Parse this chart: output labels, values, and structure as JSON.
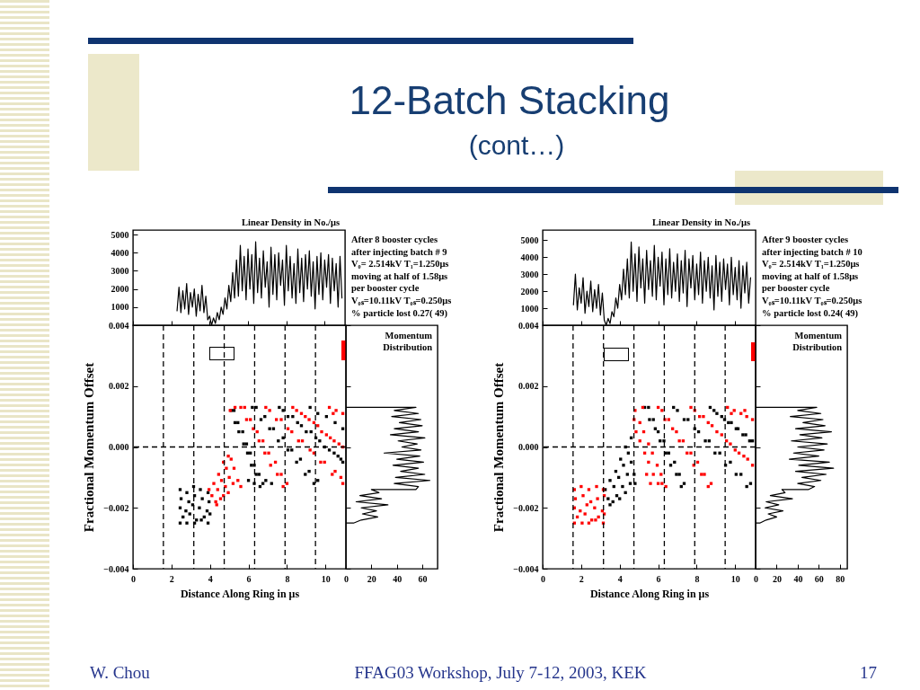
{
  "chart_data": [
    {
      "type": "other",
      "title": "12-Batch Stacking",
      "subtitle": "(cont…)",
      "annotations": [
        "W. Chou",
        "FFAG03 Workshop, July 7-12, 2003, KEK",
        "17"
      ]
    },
    {
      "type": "line",
      "title": "Linear Density in No./μs",
      "annotations": [
        "After 8 booster cycles",
        "after injecting batch # 9",
        "V₀= 2.514kV T₁=1.250μs",
        "moving at half of 1.58μs",
        "per booster cycle",
        "V₀ₛ=10.11kV T₀ₛ=0.250μs",
        "% particle lost 0.27( 49)"
      ],
      "color": "#000000",
      "x": [
        2.3,
        2.4,
        2.5,
        2.6,
        2.7,
        2.8,
        2.9,
        3.0,
        3.1,
        3.2,
        3.3,
        3.4,
        3.5,
        3.6,
        3.7,
        3.8,
        3.9,
        4.0,
        4.1,
        4.2,
        4.3,
        4.4,
        4.5,
        4.6,
        4.7,
        4.8,
        4.9,
        5.0,
        5.1,
        5.2,
        5.3,
        5.4,
        5.5,
        5.6,
        5.7,
        5.8,
        5.9,
        6.0,
        6.1,
        6.2,
        6.3,
        6.4,
        6.5,
        6.6,
        6.7,
        6.8,
        6.9,
        7.0,
        7.1,
        7.2,
        7.3,
        7.4,
        7.5,
        7.6,
        7.7,
        7.8,
        7.9,
        8.0,
        8.1,
        8.2,
        8.3,
        8.4,
        8.5,
        8.6,
        8.7,
        8.8,
        8.9,
        9.0,
        9.1,
        9.2,
        9.3,
        9.4,
        9.5,
        9.6,
        9.7,
        9.8,
        9.9,
        10.0,
        10.1,
        10.2,
        10.3,
        10.4,
        10.5,
        10.6,
        10.7,
        10.8,
        10.9
      ],
      "values": [
        800,
        2100,
        700,
        1900,
        900,
        2300,
        600,
        1800,
        1000,
        2000,
        500,
        1700,
        800,
        2200,
        700,
        1600,
        300,
        500,
        0,
        400,
        100,
        700,
        300,
        1000,
        600,
        1500,
        900,
        2200,
        1300,
        2900,
        1500,
        3600,
        1600,
        4400,
        1900,
        3800,
        1400,
        4200,
        2000,
        3900,
        1200,
        4600,
        1800,
        3700,
        1500,
        4100,
        2100,
        3500,
        1000,
        4300,
        1700,
        3900,
        1400,
        4000,
        2200,
        3600,
        1100,
        4400,
        1900,
        3800,
        1500,
        3400,
        1200,
        4200,
        1800,
        3700,
        1300,
        3900,
        2000,
        4100,
        1600,
        3500,
        900,
        3800,
        1700,
        4000,
        1400,
        3600,
        2100,
        3900,
        1200,
        3700,
        1900,
        3400,
        1000,
        3800,
        1500
      ],
      "xlim": [
        0,
        11.06
      ],
      "xticks": [
        0,
        2,
        4,
        6,
        8,
        10
      ],
      "ylim": [
        0,
        5250
      ],
      "yticks": [
        1000,
        2000,
        3000,
        4000,
        5000
      ],
      "tick_labels": "y"
    },
    {
      "type": "scatter",
      "xlabel": "Distance Along Ring in μs",
      "ylabel": "Fractional Momentum Offset",
      "marker": "square",
      "series": [
        {
          "color": "#000000",
          "x": [
            2.45,
            2.8,
            3.15,
            3.5,
            3.9,
            2.5,
            2.9,
            3.2,
            3.6,
            3.95,
            2.45,
            2.75,
            3.1,
            3.45,
            3.85,
            2.6,
            2.95,
            3.3,
            3.7,
            4.0,
            2.45,
            2.8,
            3.2,
            3.55,
            3.9,
            5.1,
            5.3,
            5.5,
            5.75,
            5.95,
            6.15,
            6.4,
            6.6,
            5.25,
            5.45,
            5.7,
            5.9,
            6.1,
            6.3,
            6.55,
            6.75,
            6.2,
            6.65,
            7.1,
            7.55,
            8.05,
            8.5,
            8.95,
            9.4,
            6.4,
            6.85,
            7.3,
            7.8,
            8.25,
            8.7,
            9.15,
            9.6,
            7.6,
            8.05,
            8.55,
            9.0,
            9.5,
            9.95,
            10.45,
            10.9,
            7.8,
            8.3,
            8.75,
            9.25,
            9.7,
            10.2,
            10.65,
            10.8,
            9.2,
            9.6,
            10.05,
            10.5,
            10.9,
            6.0,
            6.3,
            6.9,
            7.2
          ],
          "values": [
            -0.0014,
            -0.0015,
            -0.0013,
            -0.0014,
            -0.0015,
            -0.0017,
            -0.0018,
            -0.0016,
            -0.0017,
            -0.0018,
            -0.002,
            -0.0021,
            -0.0019,
            -0.002,
            -0.0021,
            -0.0023,
            -0.0022,
            -0.0024,
            -0.0023,
            -0.0022,
            -0.0025,
            -0.0025,
            -0.0025,
            -0.0024,
            -0.0025,
            0.0012,
            0.0008,
            0.0005,
            0.0001,
            -0.0002,
            -0.0006,
            -0.0009,
            -0.0013,
            0.0012,
            0.0008,
            0.0005,
            0.0001,
            -0.0002,
            -0.0006,
            -0.0009,
            -0.0012,
            0.0013,
            0.0009,
            0.0006,
            0.0002,
            -0.0001,
            -0.0005,
            -0.0009,
            -0.0012,
            0.0013,
            0.001,
            0.0006,
            0.0003,
            -0.0001,
            -0.0004,
            -0.0008,
            -0.0011,
            0.0013,
            0.001,
            0.0008,
            0.0005,
            0.0003,
            0,
            -0.0002,
            -0.0005,
            0.0012,
            0.001,
            0.0007,
            0.0005,
            0.0002,
            -0.0001,
            -0.0003,
            -0.0004,
            0.0013,
            0.0011,
            0.001,
            0.0008,
            0.0006,
            -0.0011,
            -0.0012,
            -0.0011,
            -0.0012
          ]
        },
        {
          "color": "#ff0000",
          "x": [
            3.95,
            4.1,
            4.3,
            4.35,
            4.2,
            4.4,
            4.55,
            4.7,
            4.45,
            4.6,
            4.8,
            4.95,
            4.7,
            4.85,
            5.0,
            5.2,
            4.95,
            5.1,
            5.25,
            5.45,
            5.6,
            5.6,
            5.9,
            6.25,
            6.55,
            6.85,
            7.15,
            7.5,
            7.8,
            5.8,
            6.1,
            6.45,
            6.75,
            7.05,
            7.4,
            7.7,
            8.0,
            6.9,
            7.45,
            8.05,
            8.6,
            9.2,
            9.75,
            10.35,
            10.9,
            7.1,
            7.7,
            8.25,
            8.8,
            9.4,
            9.95,
            10.5,
            10.8,
            8.3,
            8.75,
            9.15,
            9.6,
            10.05,
            10.45,
            10.9,
            8.5,
            8.95,
            9.4,
            9.8,
            10.25,
            10.7,
            10.2,
            10.55,
            10.9,
            10.4,
            5.05,
            5.3
          ],
          "values": [
            -0.0014,
            -0.0016,
            -0.0018,
            -0.0019,
            -0.0012,
            -0.0014,
            -0.0017,
            -0.0016,
            -0.0009,
            -0.0011,
            -0.0013,
            -0.0015,
            -0.0005,
            -0.0007,
            -0.001,
            -0.0012,
            -0.0003,
            -0.0004,
            -0.0007,
            -0.0011,
            -0.0013,
            0.0013,
            0.0009,
            0.0006,
            0.0002,
            -0.0002,
            -0.0006,
            -0.0009,
            -0.0013,
            0.0013,
            0.0009,
            0.0005,
            0.0002,
            -0.0002,
            -0.0005,
            -0.0009,
            -0.0012,
            0.0013,
            0.0009,
            0.0006,
            0.0002,
            -0.0001,
            -0.0005,
            -0.0009,
            -0.0012,
            0.0012,
            0.0009,
            0.0005,
            0.0002,
            -0.0002,
            -0.0005,
            -0.0008,
            -0.001,
            0.0013,
            0.0011,
            0.0009,
            0.0007,
            0.0004,
            0.0002,
            0,
            0.0012,
            0.001,
            0.0008,
            0.0005,
            0.0003,
            0.0001,
            0.0013,
            0.0012,
            0.0011,
            0.0011,
            0.0012,
            0.0013
          ]
        }
      ],
      "xlim": [
        0,
        11.06
      ],
      "xticks": [
        0,
        2,
        4,
        6,
        8,
        10
      ],
      "ylim": [
        -0.004,
        0.004
      ],
      "yticks": [
        {
          "value": -0.004,
          "label": "−0.004"
        },
        {
          "value": -0.002,
          "label": "−0.002"
        },
        {
          "value": 0,
          "label": "0.000"
        },
        {
          "value": 0.002,
          "label": "0.002"
        },
        {
          "value": 0.004,
          "label": "0.004"
        }
      ],
      "ref_lines": [
        {
          "axis": "x",
          "value": 1.58,
          "line_style": "dashed"
        },
        {
          "axis": "x",
          "value": 3.16,
          "line_style": "dashed"
        },
        {
          "axis": "x",
          "value": 4.74,
          "line_style": "dashed"
        },
        {
          "axis": "x",
          "value": 6.32,
          "line_style": "dashed"
        },
        {
          "axis": "x",
          "value": 7.9,
          "line_style": "dashed"
        },
        {
          "axis": "x",
          "value": 9.48,
          "line_style": "dashed"
        },
        {
          "axis": "y",
          "value": 0,
          "line_style": "dashed"
        }
      ]
    },
    {
      "type": "line",
      "title": "Momentum Distribution",
      "color": "#000000",
      "x": [
        0,
        55,
        38,
        57,
        36,
        59,
        42,
        60,
        38,
        57,
        35,
        62,
        41,
        56,
        44,
        59,
        30,
        58,
        40,
        61,
        37,
        57,
        43,
        62,
        39,
        66,
        38,
        57,
        55,
        20,
        26,
        11,
        28,
        8,
        33,
        12,
        24,
        13,
        25,
        12,
        6,
        0
      ],
      "values": [
        0.0013,
        0.0013,
        0.0012,
        0.0011,
        0.001,
        0.0009,
        0.0008,
        0.0007,
        0.0006,
        0.0005,
        0.0004,
        0.0003,
        0.0002,
        0.0001,
        0,
        -0.0001,
        -0.0002,
        -0.0003,
        -0.0004,
        -0.0005,
        -0.0006,
        -0.0007,
        -0.0008,
        -0.0009,
        -0.001,
        -0.0011,
        -0.0012,
        -0.0013,
        -0.0014,
        -0.0014,
        -0.0015,
        -0.0016,
        -0.0017,
        -0.0018,
        -0.0019,
        -0.002,
        -0.0021,
        -0.0022,
        -0.0023,
        -0.0024,
        -0.0025,
        -0.0025
      ],
      "xlim": [
        0,
        72
      ],
      "xticks": [
        0,
        20,
        40,
        60
      ],
      "ylim": [
        -0.004,
        0.004
      ],
      "yticks": [
        -0.004,
        -0.002,
        0,
        0.002,
        0.004
      ],
      "tick_labels": "x"
    },
    {
      "type": "line",
      "title": "Linear Density in No./μs",
      "annotations": [
        "After 9 booster cycles",
        "after injecting batch # 10",
        "V₀= 2.514kV T₁=1.250μs",
        "moving at half of 1.58μs",
        "per booster cycle",
        "V₀ₛ=10.11kV T₀ₛ=0.250μs",
        "% particle lost 0.24( 49)"
      ],
      "color": "#000000",
      "x": [
        1.6,
        1.7,
        1.8,
        1.9,
        2.0,
        2.1,
        2.2,
        2.3,
        2.4,
        2.5,
        2.6,
        2.7,
        2.8,
        2.9,
        3.0,
        3.1,
        3.2,
        3.3,
        3.4,
        3.5,
        3.6,
        3.7,
        3.8,
        3.9,
        4.0,
        4.1,
        4.2,
        4.3,
        4.4,
        4.5,
        4.6,
        4.7,
        4.8,
        4.9,
        5.0,
        5.1,
        5.2,
        5.3,
        5.4,
        5.5,
        5.6,
        5.7,
        5.8,
        5.9,
        6.0,
        6.1,
        6.2,
        6.3,
        6.4,
        6.5,
        6.6,
        6.7,
        6.8,
        6.9,
        7.0,
        7.1,
        7.2,
        7.3,
        7.4,
        7.5,
        7.6,
        7.7,
        7.8,
        7.9,
        8.0,
        8.1,
        8.2,
        8.3,
        8.4,
        8.5,
        8.6,
        8.7,
        8.8,
        8.9,
        9.0,
        9.1,
        9.2,
        9.3,
        9.4,
        9.5,
        9.6,
        9.7,
        9.8,
        9.9,
        10.0,
        10.1,
        10.2,
        10.3,
        10.4,
        10.5,
        10.6,
        10.7,
        10.8
      ],
      "values": [
        1200,
        3000,
        900,
        2200,
        1300,
        2800,
        700,
        2000,
        1100,
        2600,
        800,
        2100,
        1000,
        2400,
        600,
        1900,
        300,
        0,
        400,
        100,
        800,
        500,
        1600,
        1000,
        2400,
        1500,
        3300,
        1800,
        3900,
        1600,
        4900,
        2000,
        4200,
        1400,
        4600,
        2200,
        3900,
        1300,
        4400,
        2100,
        3800,
        1700,
        4700,
        1500,
        4000,
        2300,
        4300,
        1200,
        3900,
        1800,
        4500,
        1600,
        3700,
        2000,
        4200,
        1400,
        3800,
        1900,
        4400,
        1100,
        3900,
        2200,
        4100,
        1500,
        3600,
        1800,
        4300,
        1300,
        3800,
        2000,
        4000,
        1600,
        3500,
        900,
        4100,
        1700,
        3700,
        1400,
        3900,
        2100,
        3600,
        1200,
        4000,
        1800,
        3400,
        1500,
        3800,
        1000,
        3500,
        1900,
        3700,
        1300,
        2800
      ],
      "xlim": [
        0,
        11.06
      ],
      "xticks": [
        0,
        2,
        4,
        6,
        8,
        10
      ],
      "ylim": [
        0,
        5600
      ],
      "yticks": [
        1000,
        2000,
        3000,
        4000,
        5000
      ],
      "tick_labels": "y"
    },
    {
      "type": "scatter",
      "xlabel": "Distance Along Ring in μs",
      "ylabel": "Fractional Momentum Offset",
      "marker": "square",
      "series": [
        {
          "color": "#000000",
          "x": [
            3.25,
            3.4,
            3.5,
            3.65,
            3.5,
            3.7,
            3.85,
            4.0,
            3.8,
            3.95,
            4.15,
            4.3,
            4.05,
            4.2,
            4.4,
            4.55,
            4.3,
            4.45,
            4.6,
            4.75,
            4.8,
            4.6,
            5.3,
            5.55,
            5.85,
            6.1,
            6.4,
            6.65,
            6.95,
            7.2,
            5.5,
            5.75,
            6.0,
            6.3,
            6.55,
            6.85,
            7.1,
            7.35,
            6.8,
            7.35,
            7.9,
            8.45,
            8.95,
            9.5,
            10.05,
            10.6,
            7.0,
            7.55,
            8.1,
            8.65,
            9.2,
            9.75,
            10.3,
            10.8,
            8.7,
            9.05,
            9.45,
            9.8,
            10.15,
            10.55,
            10.9,
            8.9,
            9.3,
            9.65,
            10.05,
            10.4,
            10.75
          ],
          "values": [
            -0.0014,
            -0.0017,
            -0.0019,
            -0.0018,
            -0.0011,
            -0.0013,
            -0.0016,
            -0.0017,
            -0.0008,
            -0.001,
            -0.0013,
            -0.0015,
            -0.0004,
            -0.0006,
            -0.0009,
            -0.0012,
            0,
            -0.0002,
            -0.0005,
            -0.0009,
            -0.0012,
            0.0003,
            0.0013,
            0.0009,
            0.0006,
            0.0002,
            -0.0002,
            -0.0006,
            -0.0009,
            -0.0013,
            0.0013,
            0.0009,
            0.0005,
            0.0002,
            -0.0002,
            -0.0005,
            -0.0009,
            -0.0012,
            0.0013,
            0.0009,
            0.0006,
            0.0002,
            -0.0002,
            -0.0006,
            -0.0009,
            -0.0013,
            0.0012,
            0.0009,
            0.0005,
            0.0002,
            -0.0002,
            -0.0005,
            -0.0009,
            -0.0012,
            0.0013,
            0.0011,
            0.0009,
            0.0008,
            0.0006,
            0.0004,
            0.0002,
            0.0012,
            0.001,
            0.0008,
            0.0006,
            0.0004,
            0.0002
          ]
        },
        {
          "color": "#ff0000",
          "x": [
            1.65,
            2.0,
            2.4,
            2.8,
            3.15,
            1.7,
            2.1,
            2.5,
            2.85,
            3.2,
            1.65,
            1.95,
            2.3,
            2.7,
            3.1,
            1.8,
            2.2,
            2.55,
            2.9,
            3.2,
            1.65,
            2.05,
            2.4,
            2.75,
            3.15,
            4.8,
            5.05,
            5.25,
            5.5,
            5.7,
            5.95,
            6.15,
            6.4,
            4.75,
            4.85,
            5.05,
            5.3,
            5.5,
            5.75,
            6.0,
            5.2,
            6.0,
            6.35,
            6.75,
            7.1,
            7.5,
            7.85,
            8.25,
            8.6,
            6.2,
            6.55,
            6.95,
            7.3,
            7.7,
            8.05,
            8.4,
            8.75,
            7.7,
            8.15,
            8.6,
            9.05,
            9.55,
            10.0,
            10.45,
            10.9,
            7.9,
            8.35,
            8.8,
            9.3,
            9.75,
            10.2,
            10.65,
            9.6,
            9.95,
            10.3,
            10.6,
            10.9,
            9.8,
            10.5,
            5.4,
            5.6,
            6.2
          ],
          "values": [
            -0.0014,
            -0.0013,
            -0.0014,
            -0.0013,
            -0.0014,
            -0.0017,
            -0.0016,
            -0.0018,
            -0.0017,
            -0.0016,
            -0.002,
            -0.0021,
            -0.0019,
            -0.002,
            -0.0021,
            -0.0023,
            -0.0022,
            -0.0024,
            -0.0023,
            -0.0022,
            -0.0025,
            -0.0025,
            -0.0025,
            -0.0024,
            -0.0025,
            0.0012,
            0.0008,
            0.0005,
            0.0001,
            -0.0002,
            -0.0006,
            -0.0009,
            -0.0013,
            0.0009,
            0.0005,
            0.0002,
            -0.0002,
            -0.0005,
            -0.0009,
            -0.0012,
            0.0013,
            0.0013,
            0.0009,
            0.0006,
            0.0002,
            -0.0002,
            -0.0006,
            -0.0009,
            -0.0013,
            0.0012,
            0.0009,
            0.0005,
            0.0002,
            -0.0002,
            -0.0005,
            -0.0009,
            -0.0012,
            0.0013,
            0.001,
            0.0008,
            0.0005,
            0.0002,
            -0.0001,
            -0.0003,
            -0.0006,
            0.0012,
            0.001,
            0.0007,
            0.0004,
            0.0001,
            -0.0002,
            -0.0004,
            0.0013,
            0.0012,
            0.0011,
            0.001,
            0.0009,
            0.0011,
            0.0012,
            -0.0009,
            -0.0012,
            -0.0012
          ]
        }
      ],
      "xlim": [
        0,
        11.06
      ],
      "xticks": [
        0,
        2,
        4,
        6,
        8,
        10
      ],
      "ylim": [
        -0.004,
        0.004
      ],
      "yticks": [
        {
          "value": -0.004,
          "label": "−0.004"
        },
        {
          "value": -0.002,
          "label": "−0.002"
        },
        {
          "value": 0,
          "label": "0.000"
        },
        {
          "value": 0.002,
          "label": "0.002"
        },
        {
          "value": 0.004,
          "label": "0.004"
        }
      ],
      "ref_lines": [
        {
          "axis": "x",
          "value": 1.58,
          "line_style": "dashed"
        },
        {
          "axis": "x",
          "value": 3.16,
          "line_style": "dashed"
        },
        {
          "axis": "x",
          "value": 4.74,
          "line_style": "dashed"
        },
        {
          "axis": "x",
          "value": 6.32,
          "line_style": "dashed"
        },
        {
          "axis": "x",
          "value": 7.9,
          "line_style": "dashed"
        },
        {
          "axis": "x",
          "value": 9.48,
          "line_style": "dashed"
        },
        {
          "axis": "y",
          "value": 0,
          "line_style": "dashed"
        }
      ]
    },
    {
      "type": "line",
      "title": "Momentum Distribution",
      "color": "#000000",
      "x": [
        0,
        58,
        40,
        62,
        33,
        64,
        45,
        66,
        38,
        72,
        42,
        63,
        34,
        68,
        40,
        65,
        36,
        60,
        32,
        70,
        41,
        74,
        38,
        67,
        44,
        62,
        40,
        56,
        50,
        25,
        28,
        14,
        35,
        10,
        22,
        9,
        26,
        12,
        20,
        10,
        4,
        0
      ],
      "values": [
        0.0013,
        0.0013,
        0.0012,
        0.0011,
        0.001,
        0.0009,
        0.0008,
        0.0007,
        0.0006,
        0.0005,
        0.0004,
        0.0003,
        0.0002,
        0.0001,
        0,
        -0.0001,
        -0.0002,
        -0.0003,
        -0.0004,
        -0.0005,
        -0.0006,
        -0.0007,
        -0.0008,
        -0.0009,
        -0.001,
        -0.0011,
        -0.0012,
        -0.0013,
        -0.0014,
        -0.0014,
        -0.0015,
        -0.0016,
        -0.0017,
        -0.0018,
        -0.0019,
        -0.002,
        -0.0021,
        -0.0022,
        -0.0023,
        -0.0024,
        -0.0025,
        -0.0025
      ],
      "xlim": [
        0,
        87
      ],
      "xticks": [
        0,
        20,
        40,
        60,
        80
      ],
      "ylim": [
        -0.004,
        0.004
      ],
      "yticks": [
        -0.004,
        -0.002,
        0,
        0.002,
        0.004
      ],
      "tick_labels": "x"
    }
  ]
}
